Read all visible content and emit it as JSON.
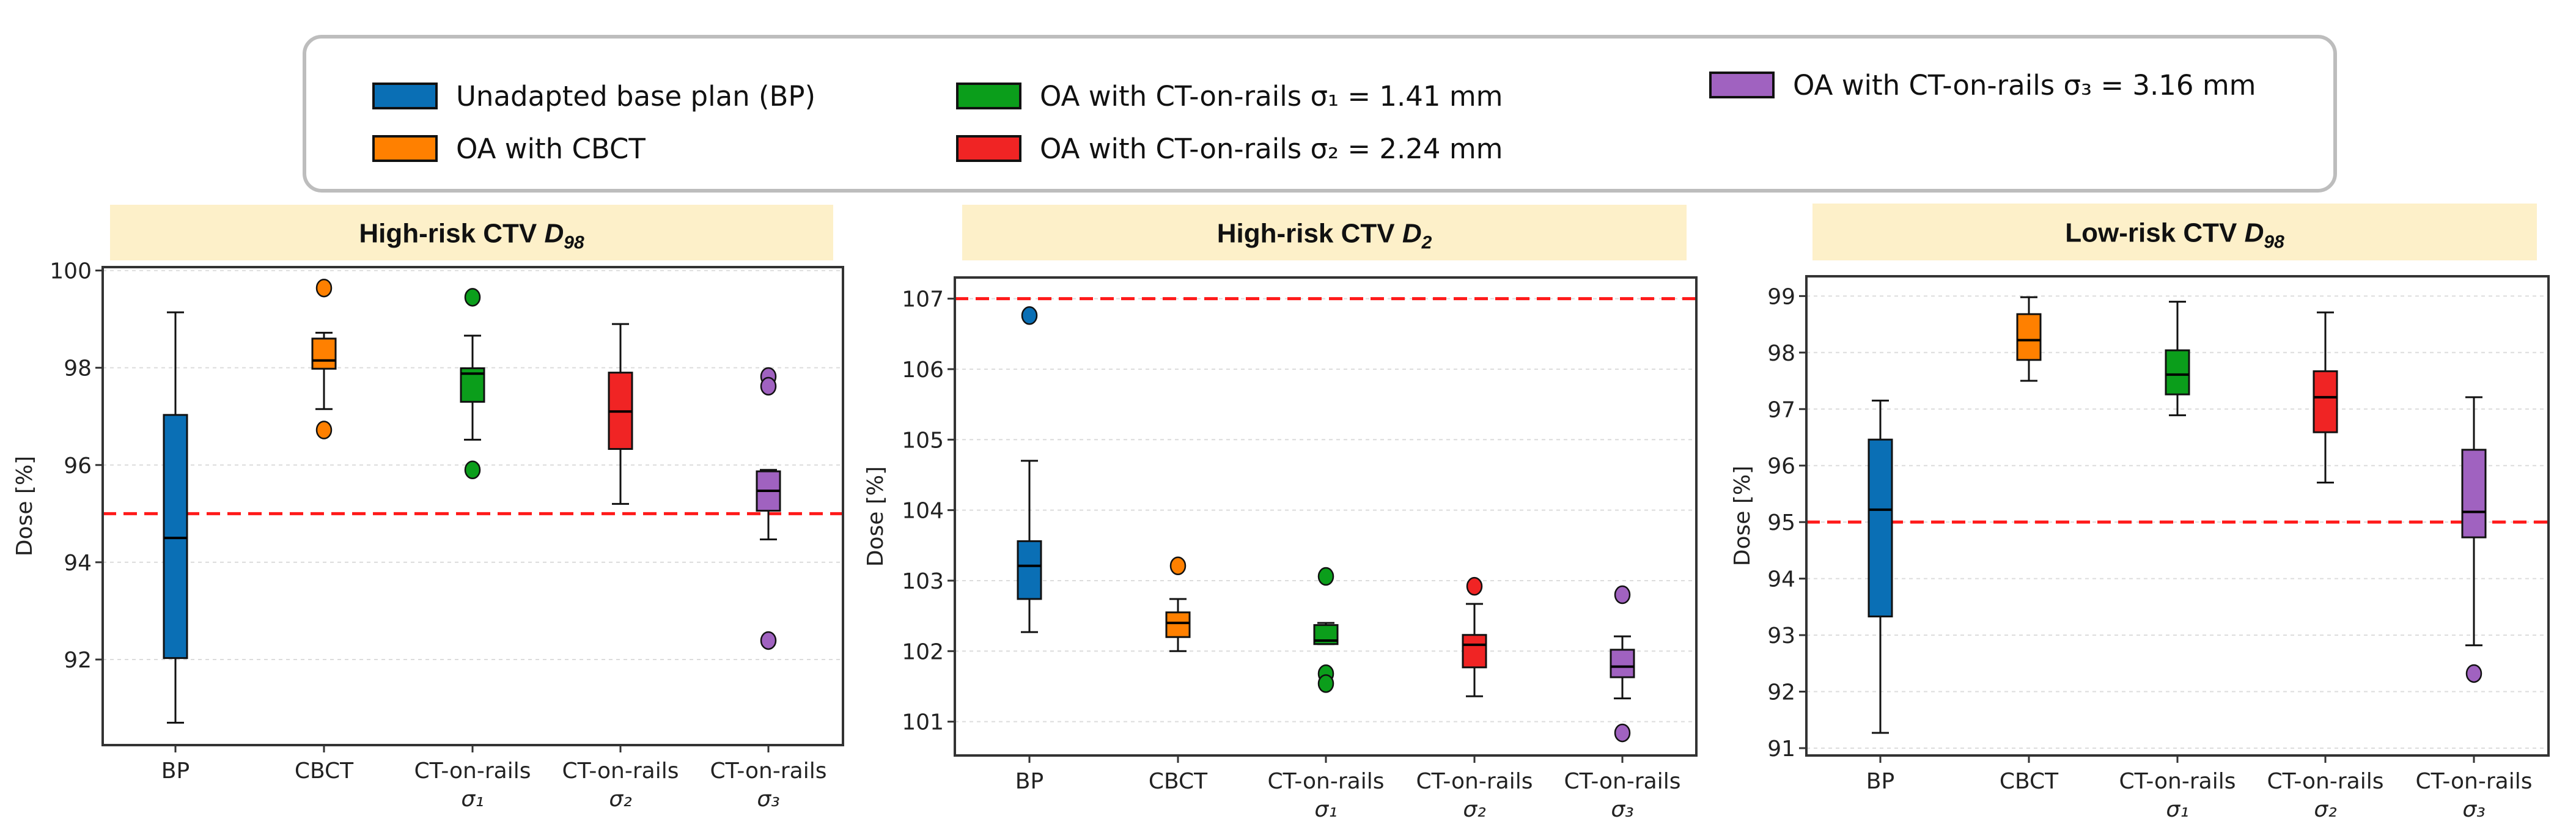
{
  "legend": {
    "entries": [
      {
        "label": "Unadapted base plan (BP)",
        "color": "#0a6fb5"
      },
      {
        "label": "OA with CBCT",
        "color": "#ff8000"
      },
      {
        "label": "OA with CT-on-rails σ₁ = 1.41 mm",
        "color": "#0b9e1b"
      },
      {
        "label": "OA with CT-on-rails σ₂ = 2.24 mm",
        "color": "#f02424"
      },
      {
        "label": "OA with CT-on-rails σ₃ = 3.16 mm",
        "color": "#a062c0"
      }
    ]
  },
  "chart_data": [
    {
      "type": "box",
      "title_prefix": "High-risk CTV",
      "title_var": "D",
      "title_sub": "98",
      "ylabel": "Dose [%]",
      "ylim": [
        90.24,
        100.07
      ],
      "yticks": [
        92,
        94,
        96,
        98,
        100
      ],
      "grid": true,
      "threshold": 95,
      "categories": [
        "BP",
        "CBCT",
        "CT-on-rails",
        "CT-on-rails",
        "CT-on-rails"
      ],
      "category_sublabels": [
        "",
        "",
        "σ₁",
        "σ₂",
        "σ₃"
      ],
      "boxes": [
        {
          "whislo": 90.7,
          "q1": 92.03,
          "median": 94.5,
          "q3": 97.03,
          "whishi": 99.14,
          "fliers": []
        },
        {
          "whislo": 97.15,
          "q1": 97.98,
          "median": 98.15,
          "q3": 98.6,
          "whishi": 98.72,
          "fliers": [
            99.64,
            96.72
          ]
        },
        {
          "whislo": 96.52,
          "q1": 97.3,
          "median": 97.88,
          "q3": 97.99,
          "whishi": 98.66,
          "fliers": [
            99.45,
            95.9
          ]
        },
        {
          "whislo": 95.2,
          "q1": 96.33,
          "median": 97.1,
          "q3": 97.9,
          "whishi": 98.9,
          "fliers": []
        },
        {
          "whislo": 94.47,
          "q1": 95.06,
          "median": 95.47,
          "q3": 95.87,
          "whishi": 95.9,
          "fliers": [
            97.82,
            97.62,
            92.39
          ]
        }
      ]
    },
    {
      "type": "box",
      "title_prefix": "High-risk CTV",
      "title_var": "D",
      "title_sub": "2",
      "ylabel": "Dose [%]",
      "ylim": [
        100.52,
        107.3
      ],
      "yticks": [
        101,
        102,
        103,
        104,
        105,
        106,
        107
      ],
      "grid": true,
      "threshold": 107,
      "categories": [
        "BP",
        "CBCT",
        "CT-on-rails",
        "CT-on-rails",
        "CT-on-rails"
      ],
      "category_sublabels": [
        "",
        "",
        "σ₁",
        "σ₂",
        "σ₃"
      ],
      "boxes": [
        {
          "whislo": 102.27,
          "q1": 102.74,
          "median": 103.21,
          "q3": 103.56,
          "whishi": 104.7,
          "fliers": [
            106.76
          ]
        },
        {
          "whislo": 102.0,
          "q1": 102.2,
          "median": 102.4,
          "q3": 102.55,
          "whishi": 102.74,
          "fliers": [
            103.21
          ]
        },
        {
          "whislo": 102.1,
          "q1": 102.1,
          "median": 102.15,
          "q3": 102.37,
          "whishi": 102.4,
          "fliers": [
            103.06,
            101.68,
            101.54
          ]
        },
        {
          "whislo": 101.36,
          "q1": 101.77,
          "median": 102.09,
          "q3": 102.23,
          "whishi": 102.67,
          "fliers": [
            102.92
          ]
        },
        {
          "whislo": 101.33,
          "q1": 101.63,
          "median": 101.78,
          "q3": 102.02,
          "whishi": 102.21,
          "fliers": [
            102.8,
            100.84
          ]
        }
      ]
    },
    {
      "type": "box",
      "title_prefix": "Low-risk CTV",
      "title_var": "D",
      "title_sub": "98",
      "ylabel": "Dose [%]",
      "ylim": [
        90.87,
        99.35
      ],
      "yticks": [
        91,
        92,
        93,
        94,
        95,
        96,
        97,
        98,
        99
      ],
      "grid": true,
      "threshold": 95,
      "categories": [
        "BP",
        "CBCT",
        "CT-on-rails",
        "CT-on-rails",
        "CT-on-rails"
      ],
      "category_sublabels": [
        "",
        "",
        "σ₁",
        "σ₂",
        "σ₃"
      ],
      "boxes": [
        {
          "whislo": 91.27,
          "q1": 93.33,
          "median": 95.22,
          "q3": 96.46,
          "whishi": 97.15,
          "fliers": []
        },
        {
          "whislo": 97.5,
          "q1": 97.87,
          "median": 98.22,
          "q3": 98.68,
          "whishi": 98.98,
          "fliers": []
        },
        {
          "whislo": 96.89,
          "q1": 97.26,
          "median": 97.61,
          "q3": 98.04,
          "whishi": 98.9,
          "fliers": []
        },
        {
          "whislo": 95.7,
          "q1": 96.59,
          "median": 97.21,
          "q3": 97.67,
          "whishi": 98.71,
          "fliers": []
        },
        {
          "whislo": 92.82,
          "q1": 94.73,
          "median": 95.18,
          "q3": 96.28,
          "whishi": 97.21,
          "fliers": [
            92.32
          ]
        }
      ]
    }
  ]
}
